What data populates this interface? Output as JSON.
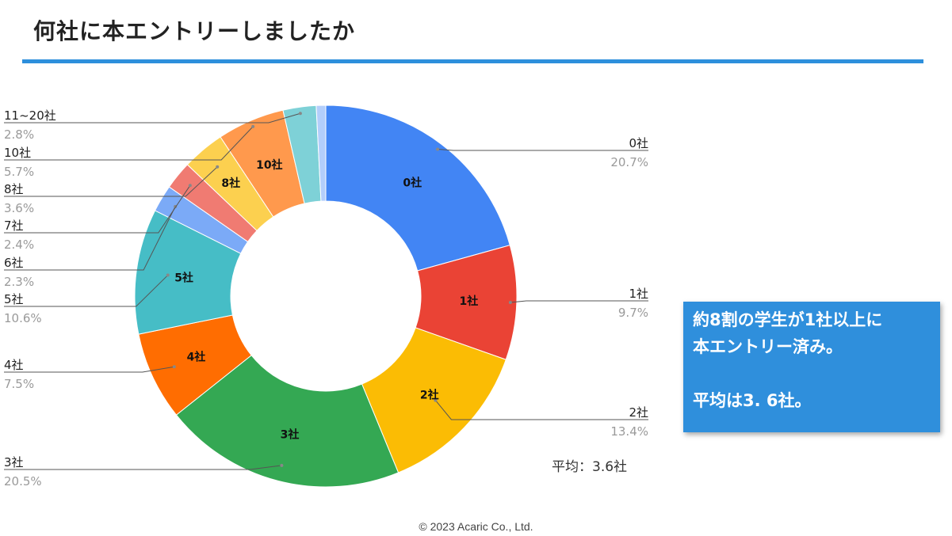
{
  "page": {
    "title": "何社に本エントリーしましたか"
  },
  "chart_data": {
    "type": "pie",
    "variant": "donut",
    "title": "",
    "categories": [
      "0社",
      "1社",
      "2社",
      "3社",
      "4社",
      "5社",
      "6社",
      "7社",
      "8社",
      "10社",
      "11~20社"
    ],
    "values": [
      20.7,
      9.7,
      13.4,
      20.5,
      7.5,
      10.6,
      2.3,
      2.4,
      3.6,
      5.7,
      2.8
    ],
    "value_labels": [
      "20.7%",
      "9.7%",
      "13.4%",
      "20.5%",
      "7.5%",
      "10.6%",
      "2.3%",
      "2.4%",
      "3.6%",
      "5.7%",
      "2.8%"
    ],
    "slice_labels": [
      "0社",
      "1社",
      "2社",
      "3社",
      "4社",
      "5社",
      "",
      "",
      "8社",
      "10社",
      ""
    ],
    "colors": [
      "#4285f4",
      "#ea4335",
      "#fbbc04",
      "#34a853",
      "#ff6d01",
      "#46bdc6",
      "#7baaf7",
      "#f07b72",
      "#fcd04f",
      "#ff994d",
      "#7ed1d7",
      "#b3cefb"
    ],
    "legend": "callout-labels"
  },
  "callout": {
    "line1": "約8割の学生が1社以上に",
    "line2": "本エントリー済み。",
    "line3": "平均は3. 6社。"
  },
  "note": "平均：3.6社",
  "footer": "© 2023 Acaric Co., Ltd."
}
